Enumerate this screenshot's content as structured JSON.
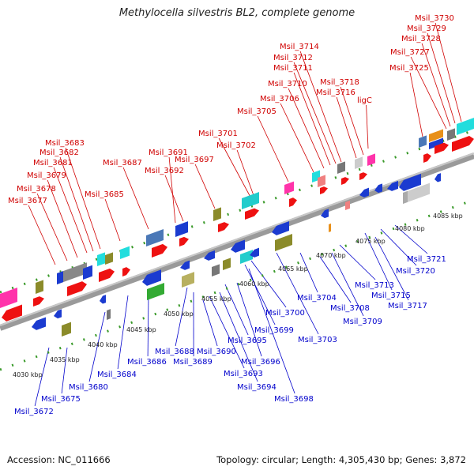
{
  "title": "Methylocella silvestris BL2, complete genome",
  "footer": {
    "accession_label": "Accession:",
    "accession": "NC_011666",
    "topology_label": "Topology:",
    "topology": "circular",
    "length_label": "Length:",
    "length": "4,305,430 bp",
    "genes_label": "Genes:",
    "genes": "3,872"
  },
  "colors": {
    "top_label": "#d00000",
    "bottom_label": "#0000cc",
    "backbone": "#888888",
    "tick": "#3a9a2a"
  },
  "axis_ticks": [
    {
      "position_kbp": 4030,
      "label": "4030 kbp"
    },
    {
      "position_kbp": 4035,
      "label": "4035 kbp"
    },
    {
      "position_kbp": 4040,
      "label": "4040 kbp"
    },
    {
      "position_kbp": 4045,
      "label": "4045 kbp"
    },
    {
      "position_kbp": 4050,
      "label": "4050 kbp"
    },
    {
      "position_kbp": 4055,
      "label": "4055 kbp"
    },
    {
      "position_kbp": 4060,
      "label": "4060 kbp"
    },
    {
      "position_kbp": 4065,
      "label": "4065 kbp"
    },
    {
      "position_kbp": 4070,
      "label": "4070 kbp"
    },
    {
      "position_kbp": 4075,
      "label": "4075 kbp"
    },
    {
      "position_kbp": 4080,
      "label": "4080 kbp"
    },
    {
      "position_kbp": 4085,
      "label": "4085 kbp"
    }
  ],
  "top_genes": [
    "Msil_3677",
    "Msil_3678",
    "Msil_3679",
    "Msil_3681",
    "Msil_3682",
    "Msil_3683",
    "Msil_3685",
    "Msil_3687",
    "Msil_3691",
    "Msil_3692",
    "Msil_3697",
    "Msil_3701",
    "Msil_3702",
    "Msil_3705",
    "Msil_3706",
    "Msil_3710",
    "Msil_3711",
    "Msil_3712",
    "Msil_3714",
    "Msil_3716",
    "Msil_3718",
    "ligC",
    "Msil_3725",
    "Msil_3727",
    "Msil_3728",
    "Msil_3729",
    "Msil_3730"
  ],
  "bottom_genes": [
    "Msil_3672",
    "Msil_3675",
    "Msil_3680",
    "Msil_3684",
    "Msil_3686",
    "Msil_3688",
    "Msil_3689",
    "Msil_3690",
    "Msil_3693",
    "Msil_3694",
    "Msil_3695",
    "Msil_3696",
    "Msil_3698",
    "Msil_3699",
    "Msil_3700",
    "Msil_3703",
    "Msil_3704",
    "Msil_3708",
    "Msil_3709",
    "Msil_3713",
    "Msil_3715",
    "Msil_3717",
    "Msil_3720",
    "Msil_3721"
  ]
}
